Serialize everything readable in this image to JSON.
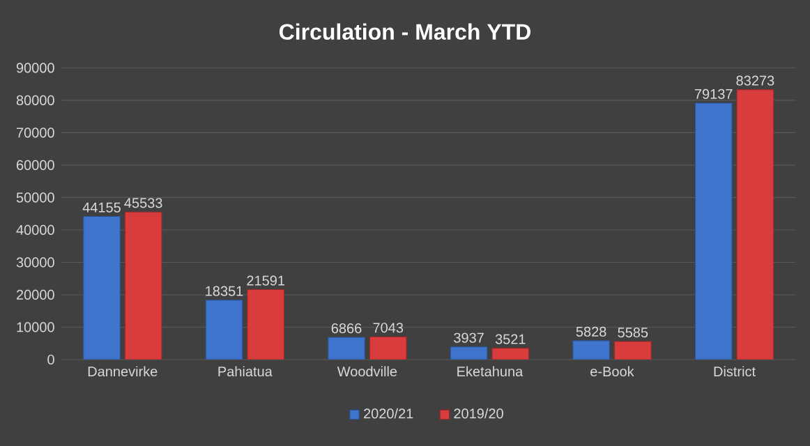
{
  "chart_data": {
    "type": "bar",
    "title": "Circulation - March  YTD",
    "categories": [
      "Dannevirke",
      "Pahiatua",
      "Woodville",
      "Eketahuna",
      "e-Book",
      "District"
    ],
    "series": [
      {
        "name": "2020/21",
        "color": "#3f74cc",
        "values": [
          44155,
          18351,
          6866,
          3937,
          5828,
          79137
        ]
      },
      {
        "name": "2019/20",
        "color": "#d83c3c",
        "values": [
          45533,
          21591,
          7043,
          3521,
          5585,
          83273
        ]
      }
    ],
    "ylim": [
      0,
      90000
    ],
    "yticks": [
      0,
      10000,
      20000,
      30000,
      40000,
      50000,
      60000,
      70000,
      80000,
      90000
    ],
    "grid": "y",
    "legend": "bottom",
    "data_labels": true
  }
}
